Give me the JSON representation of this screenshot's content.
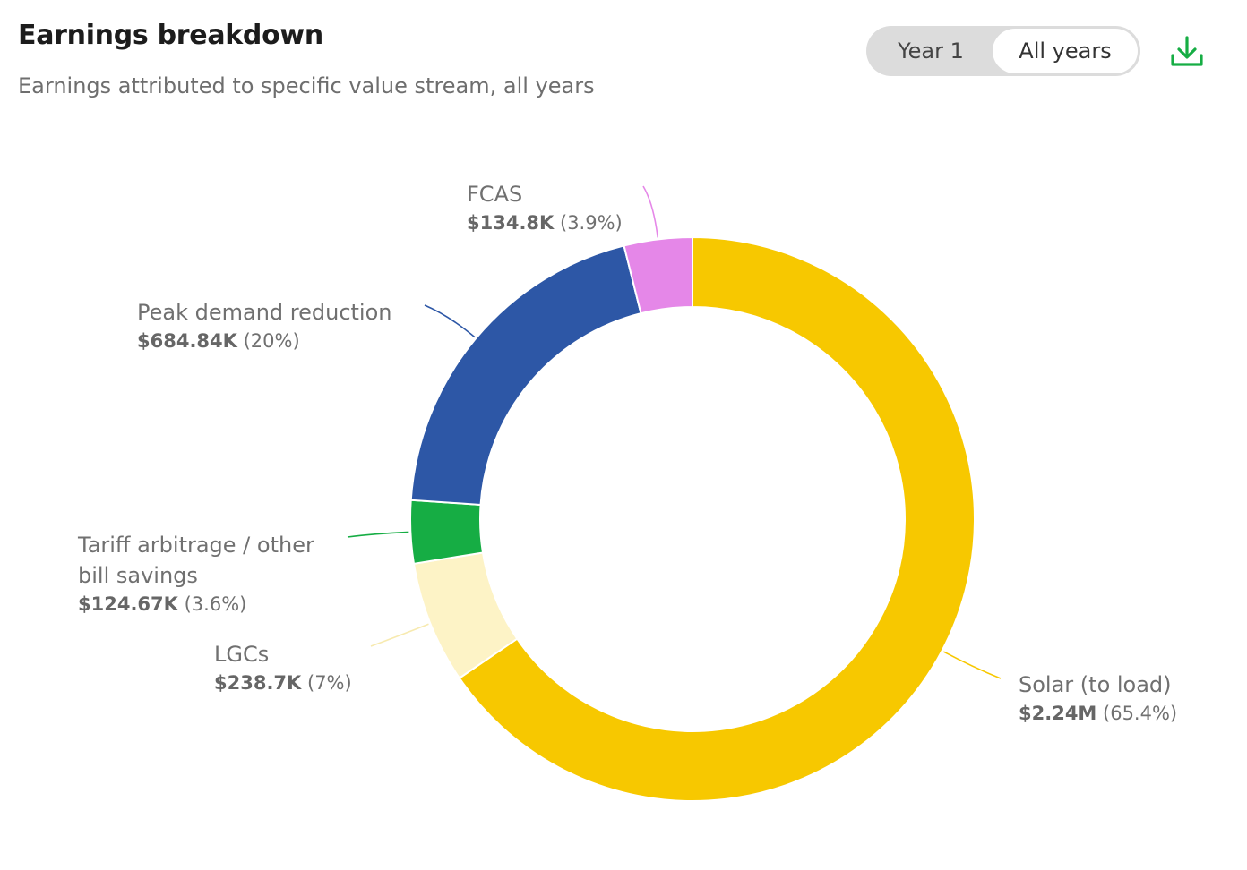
{
  "header": {
    "title": "Earnings breakdown",
    "subtitle": "Earnings attributed to specific value stream, all years"
  },
  "toggle": {
    "options": [
      "Year 1",
      "All years"
    ],
    "selected": "All years"
  },
  "icons": {
    "download": "download-icon"
  },
  "colors": {
    "solar": "#f7c800",
    "lgcs": "#fdf3c6",
    "tariff": "#16ad44",
    "peak": "#2d57a6",
    "fcas": "#e587e8",
    "download_icon": "#16ad44",
    "toggle_bg": "#dcdcdc"
  },
  "chart_data": {
    "type": "pie",
    "variant": "donut",
    "slices": [
      {
        "label": "Solar (to load)",
        "value_text": "$2.24M",
        "percent_text": "(65.4%)",
        "percent": 65.4,
        "color": "#f7c800"
      },
      {
        "label": "LGCs",
        "value_text": "$238.7K",
        "percent_text": "(7%)",
        "percent": 7.0,
        "color": "#fdf3c6"
      },
      {
        "label": "Tariff arbitrage / other bill savings",
        "value_text": "$124.67K",
        "percent_text": "(3.6%)",
        "percent": 3.6,
        "color": "#16ad44"
      },
      {
        "label": "Peak demand reduction",
        "value_text": "$684.84K",
        "percent_text": "(20%)",
        "percent": 20.0,
        "color": "#2d57a6"
      },
      {
        "label": "FCAS",
        "value_text": "$134.8K",
        "percent_text": "(3.9%)",
        "percent": 3.9,
        "color": "#e587e8"
      }
    ],
    "legend": "none",
    "labels": "outside with leader lines"
  }
}
